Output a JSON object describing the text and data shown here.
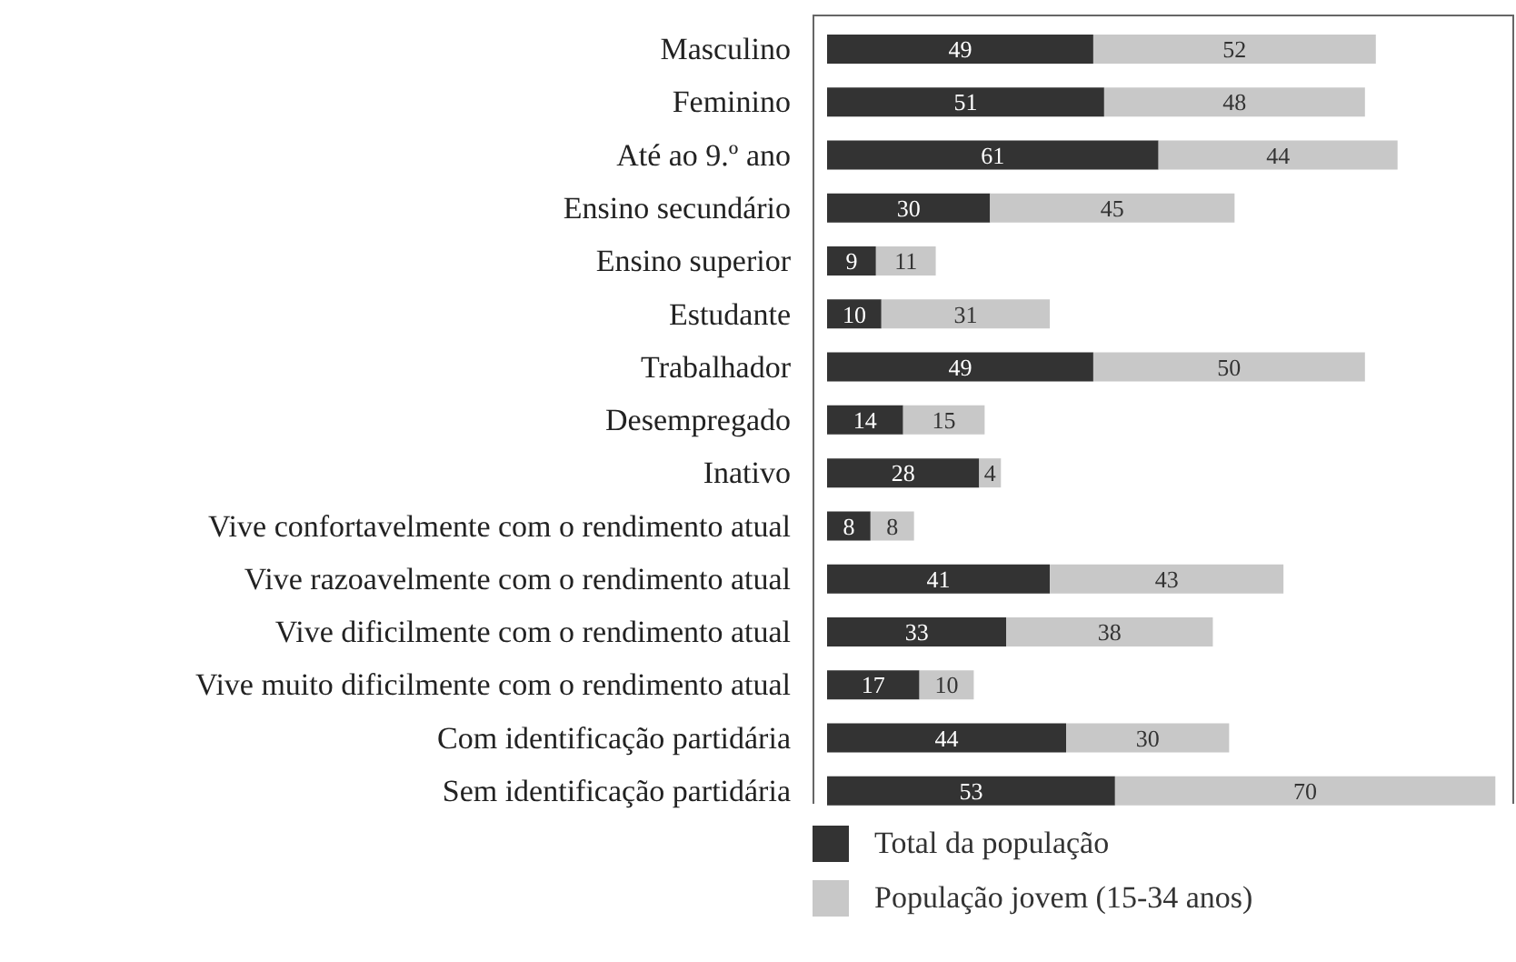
{
  "chart_data": {
    "type": "bar",
    "orientation": "horizontal",
    "stacked": true,
    "data_labels": true,
    "legend": "bottom",
    "categories": [
      "Masculino",
      "Feminino",
      "Até ao 9.º ano",
      "Ensino secundário",
      "Ensino superior",
      "Estudante",
      "Trabalhador",
      "Desempregado",
      "Inativo",
      "Vive confortavelmente com o rendimento atual",
      "Vive razoavelmente com o rendimento atual",
      "Vive dificilmente com o rendimento atual",
      "Vive muito dificilmente com o rendimento atual",
      "Com identificação partidária",
      "Sem identificação partidária"
    ],
    "series": [
      {
        "name": "Total da população",
        "color": "#333333",
        "values": [
          49,
          51,
          61,
          30,
          9,
          10,
          49,
          14,
          28,
          8,
          41,
          33,
          17,
          44,
          53
        ]
      },
      {
        "name": "População jovem (15-34 anos)",
        "color": "#c8c8c8",
        "values": [
          52,
          48,
          44,
          45,
          11,
          31,
          50,
          15,
          4,
          8,
          43,
          38,
          10,
          30,
          70
        ]
      }
    ]
  }
}
